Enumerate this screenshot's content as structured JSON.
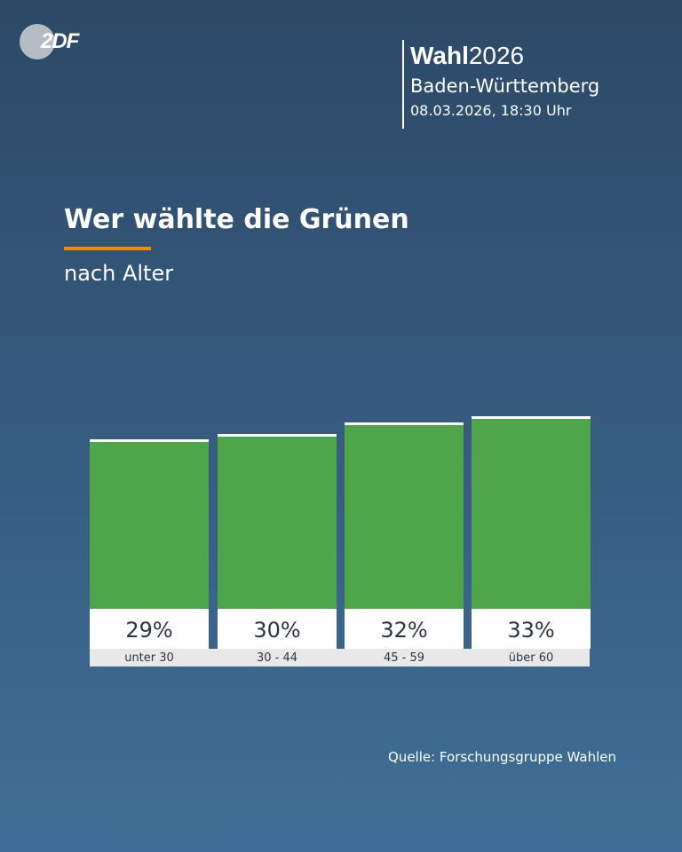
{
  "logo": {
    "text": "ZDF"
  },
  "header": {
    "title_bold": "Wahl",
    "title_year": "2026",
    "region": "Baden-Württemberg",
    "date": "08.03.2026, 18:30 Uhr"
  },
  "title": "Wer wählte die Grünen",
  "subtitle": "nach Alter",
  "colors": {
    "bar": "#4ea54a",
    "accent": "#f08c00"
  },
  "chart_data": {
    "type": "bar",
    "categories": [
      "unter 30",
      "30 - 44",
      "45 - 59",
      "über 60"
    ],
    "values": [
      29,
      30,
      32,
      33
    ],
    "value_labels": [
      "29%",
      "30%",
      "32%",
      "33%"
    ],
    "ylim": [
      0,
      33
    ]
  },
  "source": "Quelle: Forschungsgruppe Wahlen"
}
